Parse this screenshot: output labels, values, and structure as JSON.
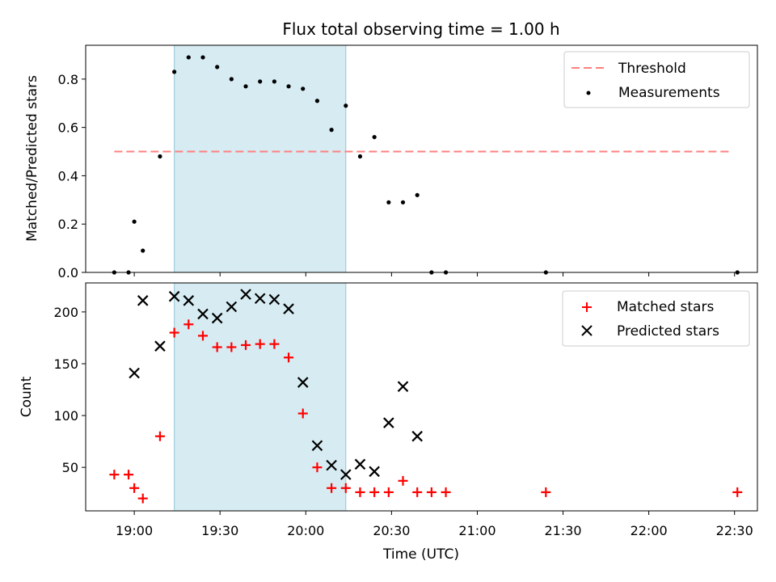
{
  "title": "Flux total observing time = 1.00 h",
  "colors": {
    "threshold": "#ff7f7f",
    "measurements": "#000000",
    "matched": "#ff0000",
    "predicted": "#000000",
    "span": "#add8e6"
  },
  "chart_data": [
    {
      "type": "scatter",
      "ylabel": "Matched/Predicted stars",
      "xlim": [
        "18:43",
        "22:38"
      ],
      "ylim": [
        0,
        0.94
      ],
      "yticks": [
        0.0,
        0.2,
        0.4,
        0.6,
        0.8
      ],
      "ytick_labels": [
        "0.0",
        "0.2",
        "0.4",
        "0.6",
        "0.8"
      ],
      "highlight_span": [
        "19:14",
        "20:14"
      ],
      "legend": {
        "position": "upper-right",
        "entries": [
          "Threshold",
          "Measurements"
        ]
      },
      "threshold": {
        "name": "Threshold",
        "y": 0.5,
        "x": [
          "18:53",
          "22:29"
        ],
        "style": "dashed"
      },
      "series": [
        {
          "name": "Measurements",
          "marker": "dot",
          "x": [
            "18:53",
            "18:58",
            "19:00",
            "19:03",
            "19:09",
            "19:14",
            "19:19",
            "19:24",
            "19:29",
            "19:34",
            "19:39",
            "19:44",
            "19:49",
            "19:54",
            "19:59",
            "20:04",
            "20:09",
            "20:14",
            "20:19",
            "20:24",
            "20:29",
            "20:34",
            "20:39",
            "20:44",
            "20:49",
            "21:24",
            "22:31"
          ],
          "y": [
            0.0,
            0.0,
            0.21,
            0.09,
            0.48,
            0.83,
            0.89,
            0.89,
            0.85,
            0.8,
            0.77,
            0.79,
            0.79,
            0.77,
            0.76,
            0.71,
            0.59,
            0.69,
            0.48,
            0.56,
            0.29,
            0.29,
            0.32,
            0.0,
            0.0,
            0.0,
            0.0
          ]
        }
      ]
    },
    {
      "type": "scatter",
      "xlabel": "Time (UTC)",
      "ylabel": "Count",
      "xlim": [
        "18:43",
        "22:38"
      ],
      "ylim": [
        8,
        228
      ],
      "yticks": [
        50,
        100,
        150,
        200
      ],
      "ytick_labels": [
        "50",
        "100",
        "150",
        "200"
      ],
      "xticks": [
        "19:00",
        "19:30",
        "20:00",
        "20:30",
        "21:00",
        "21:30",
        "22:00",
        "22:30"
      ],
      "highlight_span": [
        "19:14",
        "20:14"
      ],
      "legend": {
        "position": "upper-right",
        "entries": [
          "Matched stars",
          "Predicted stars"
        ]
      },
      "series": [
        {
          "name": "Matched stars",
          "marker": "plus",
          "x": [
            "18:53",
            "18:58",
            "19:00",
            "19:03",
            "19:09",
            "19:14",
            "19:19",
            "19:24",
            "19:29",
            "19:34",
            "19:39",
            "19:44",
            "19:49",
            "19:54",
            "19:59",
            "20:04",
            "20:09",
            "20:14",
            "20:19",
            "20:24",
            "20:29",
            "20:34",
            "20:39",
            "20:44",
            "20:49",
            "21:24",
            "22:31"
          ],
          "y": [
            43,
            43,
            30,
            20,
            80,
            180,
            188,
            177,
            166,
            166,
            168,
            169,
            169,
            156,
            102,
            50,
            30,
            30,
            26,
            26,
            26,
            37,
            26,
            26,
            26,
            26,
            26
          ]
        },
        {
          "name": "Predicted stars",
          "marker": "x",
          "x": [
            "19:00",
            "19:03",
            "19:09",
            "19:14",
            "19:19",
            "19:24",
            "19:29",
            "19:34",
            "19:39",
            "19:44",
            "19:49",
            "19:54",
            "19:59",
            "20:04",
            "20:09",
            "20:14",
            "20:19",
            "20:24",
            "20:29",
            "20:34",
            "20:39"
          ],
          "y": [
            141,
            211,
            167,
            215,
            211,
            198,
            194,
            205,
            217,
            213,
            212,
            203,
            132,
            71,
            52,
            43,
            53,
            46,
            93,
            128,
            80
          ]
        }
      ]
    }
  ]
}
